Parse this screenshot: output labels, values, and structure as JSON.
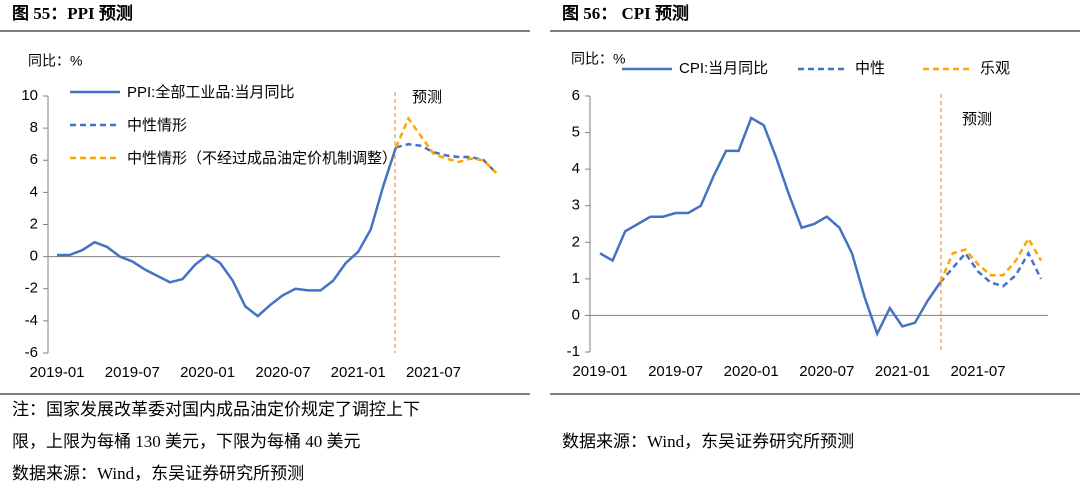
{
  "chart_data": [
    {
      "type": "line",
      "title": "图 55：PPI 预测",
      "y_label": "同比：%",
      "annotation": "预测",
      "categories": [
        "2019-01",
        null,
        null,
        null,
        null,
        null,
        "2019-07",
        null,
        null,
        null,
        null,
        null,
        "2020-01",
        null,
        null,
        null,
        null,
        null,
        "2020-07",
        null,
        null,
        null,
        null,
        null,
        "2021-01",
        null,
        null,
        null,
        null,
        null,
        "2021-07",
        null,
        null,
        null,
        null,
        null
      ],
      "series": [
        {
          "name": "PPI:全部工业品:当月同比",
          "color": "#4472c4",
          "line_style": "solid",
          "values": [
            0.1,
            0.1,
            0.4,
            0.9,
            0.6,
            0.0,
            -0.3,
            -0.8,
            -1.2,
            -1.6,
            -1.4,
            -0.5,
            0.1,
            -0.4,
            -1.5,
            -3.1,
            -3.7,
            -3.0,
            -2.4,
            -2.0,
            -2.1,
            -2.1,
            -1.5,
            -0.4,
            0.3,
            1.7,
            4.4,
            6.8,
            null,
            null,
            null,
            null,
            null,
            null,
            null,
            null
          ]
        },
        {
          "name": "中性情形",
          "color": "#4472c4",
          "line_style": "dashed",
          "values": [
            null,
            null,
            null,
            null,
            null,
            null,
            null,
            null,
            null,
            null,
            null,
            null,
            null,
            null,
            null,
            null,
            null,
            null,
            null,
            null,
            null,
            null,
            null,
            null,
            null,
            null,
            null,
            6.8,
            7.0,
            6.9,
            6.5,
            6.3,
            6.2,
            6.2,
            6.0,
            5.2
          ]
        },
        {
          "name": "中性情形（不经过成品油定价机制调整）",
          "color": "#ffa500",
          "line_style": "dashed",
          "values": [
            null,
            null,
            null,
            null,
            null,
            null,
            null,
            null,
            null,
            null,
            null,
            null,
            null,
            null,
            null,
            null,
            null,
            null,
            null,
            null,
            null,
            null,
            null,
            null,
            null,
            null,
            null,
            6.8,
            8.6,
            7.5,
            6.4,
            6.1,
            5.9,
            6.1,
            6.0,
            5.2
          ]
        }
      ],
      "ylim": [
        -6,
        10
      ],
      "yticks": [
        -6,
        -4,
        -2,
        0,
        2,
        4,
        6,
        8,
        10
      ],
      "legend": "upper left",
      "legend_layout": "vertical"
    },
    {
      "type": "line",
      "title": "图 56： CPI 预测",
      "y_label": "同比：%",
      "annotation": "预测",
      "categories": [
        "2019-01",
        null,
        null,
        null,
        null,
        null,
        "2019-07",
        null,
        null,
        null,
        null,
        null,
        "2020-01",
        null,
        null,
        null,
        null,
        null,
        "2020-07",
        null,
        null,
        null,
        null,
        null,
        "2021-01",
        null,
        null,
        null,
        null,
        null,
        "2021-07",
        null,
        null,
        null,
        null,
        null
      ],
      "series": [
        {
          "name": "CPI:当月同比",
          "color": "#4472c4",
          "line_style": "solid",
          "values": [
            1.7,
            1.5,
            2.3,
            2.5,
            2.7,
            2.7,
            2.8,
            2.8,
            3.0,
            3.8,
            4.5,
            4.5,
            5.4,
            5.2,
            4.3,
            3.3,
            2.4,
            2.5,
            2.7,
            2.4,
            1.7,
            0.5,
            -0.5,
            0.2,
            -0.3,
            -0.2,
            0.4,
            0.9,
            null,
            null,
            null,
            null,
            null,
            null,
            null,
            null
          ]
        },
        {
          "name": "中性",
          "color": "#4472c4",
          "line_style": "dashed",
          "values": [
            null,
            null,
            null,
            null,
            null,
            null,
            null,
            null,
            null,
            null,
            null,
            null,
            null,
            null,
            null,
            null,
            null,
            null,
            null,
            null,
            null,
            null,
            null,
            null,
            null,
            null,
            null,
            0.9,
            1.3,
            1.7,
            1.2,
            0.9,
            0.8,
            1.1,
            1.7,
            1.0
          ]
        },
        {
          "name": "乐观",
          "color": "#ffa500",
          "line_style": "dashed",
          "values": [
            null,
            null,
            null,
            null,
            null,
            null,
            null,
            null,
            null,
            null,
            null,
            null,
            null,
            null,
            null,
            null,
            null,
            null,
            null,
            null,
            null,
            null,
            null,
            null,
            null,
            null,
            null,
            0.9,
            1.7,
            1.8,
            1.4,
            1.1,
            1.1,
            1.5,
            2.1,
            1.5
          ]
        }
      ],
      "ylim": [
        -1,
        6
      ],
      "yticks": [
        -1,
        0,
        1,
        2,
        3,
        4,
        5,
        6
      ],
      "legend": "upper left",
      "legend_layout": "horizontal"
    }
  ],
  "notes": {
    "left": [
      "注：国家发展改革委对国内成品油定价规定了调控上下",
      "限，上限为每桶 130 美元，下限为每桶 40 美元",
      "数据来源：Wind，东吴证券研究所预测"
    ],
    "right": "数据来源：Wind，东吴证券研究所预测"
  }
}
